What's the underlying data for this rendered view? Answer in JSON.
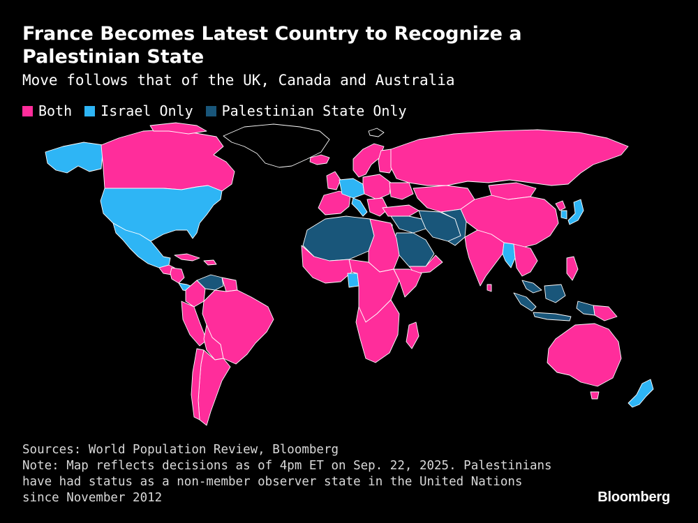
{
  "header": {
    "title": "France Becomes Latest Country to Recognize a Palestinian State",
    "subtitle": "Move follows that of the UK, Canada and Australia"
  },
  "legend": [
    {
      "label": "Both",
      "color": "#ff2d9b"
    },
    {
      "label": "Israel Only",
      "color": "#2eb5f5"
    },
    {
      "label": "Palestinian State Only",
      "color": "#19567a"
    }
  ],
  "map": {
    "colors": {
      "both": "#ff2d9b",
      "israel_only": "#2eb5f5",
      "palestinian_only": "#19567a",
      "neither": "#000000",
      "border": "#ffffff"
    }
  },
  "footer": {
    "sources": "Sources: World Population Review, Bloomberg",
    "note_lines": [
      "Note: Map reflects decisions as of 4pm ET on Sep. 22, 2025. Palestinians",
      "have had status as a non-member observer state in the United Nations",
      "since November 2012"
    ]
  },
  "brand": "Bloomberg"
}
